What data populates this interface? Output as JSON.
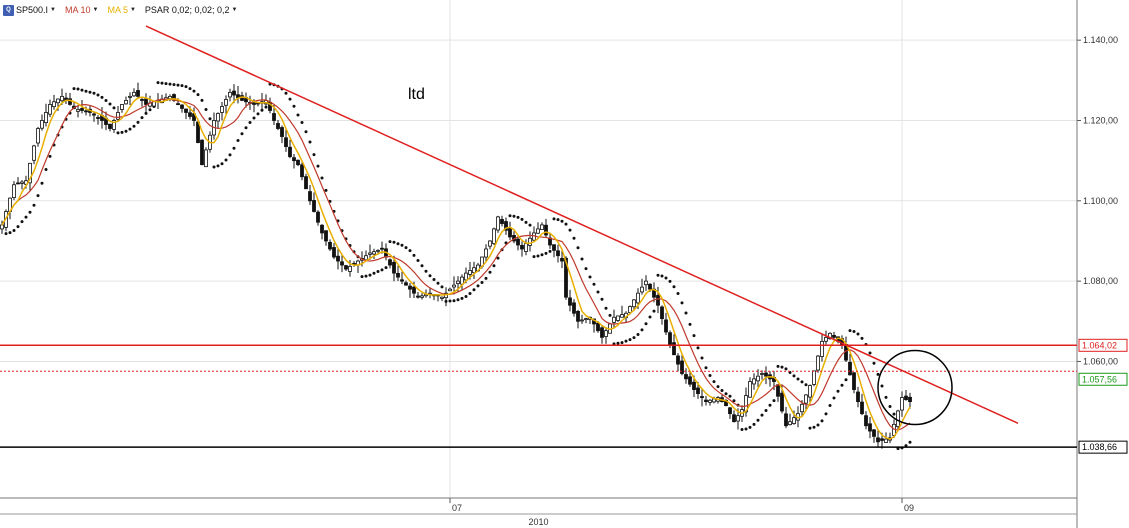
{
  "toolbar": {
    "logo_text": "Q",
    "symbol": "SP500.I",
    "ma10": "MA 10",
    "ma5": "MA 5",
    "psar": "PSAR 0,02; 0,02; 0,2",
    "colors": {
      "ma10": "#c0392b",
      "ma5": "#e8b000",
      "psar": "#111111"
    }
  },
  "annotation": "ltd",
  "chart_data": {
    "type": "candlestick",
    "instrument": "SP500.I",
    "ylim": [
      1026,
      1150
    ],
    "y_ticks": [
      "1.140,00",
      "1.120,00",
      "1.100,00",
      "1.080,00",
      "1.060,00"
    ],
    "y_tick_values": [
      1140,
      1120,
      1100,
      1080,
      1060
    ],
    "x_ticks": [
      "07",
      "09"
    ],
    "x_tick_positions_bars": [
      112,
      225
    ],
    "year_label": "2010",
    "grid": true,
    "price_levels": [
      {
        "label": "1.064,02",
        "value": 1064.02,
        "color": "#e02020",
        "style": "solid"
      },
      {
        "label": "1.057,56",
        "value": 1057.56,
        "color": "#e02020",
        "style": "dotted",
        "label_color": "#1a9a1a"
      },
      {
        "label": "1.038,66",
        "value": 1038.66,
        "color": "#000000",
        "style": "solid"
      }
    ],
    "trendline": {
      "start": [
        36,
        1143.5
      ],
      "end": [
        254,
        1044.6
      ],
      "color": "#e02020"
    },
    "circle": {
      "center": [
        227,
        1054
      ],
      "color": "#000000"
    },
    "close_path": [
      [
        0,
        1094
      ],
      [
        3,
        1104
      ],
      [
        6,
        1105
      ],
      [
        9,
        1118
      ],
      [
        12,
        1124
      ],
      [
        15,
        1126
      ],
      [
        18,
        1123
      ],
      [
        22,
        1122
      ],
      [
        25,
        1120
      ],
      [
        27,
        1118
      ],
      [
        30,
        1124
      ],
      [
        33,
        1127
      ],
      [
        36,
        1124
      ],
      [
        39,
        1125
      ],
      [
        42,
        1126
      ],
      [
        45,
        1123
      ],
      [
        48,
        1120
      ],
      [
        50,
        1109
      ],
      [
        53,
        1120
      ],
      [
        57,
        1127
      ],
      [
        60,
        1125
      ],
      [
        63,
        1124
      ],
      [
        66,
        1125
      ],
      [
        68,
        1120
      ],
      [
        70,
        1116
      ],
      [
        72,
        1111
      ],
      [
        74,
        1109
      ],
      [
        77,
        1100
      ],
      [
        80,
        1092
      ],
      [
        83,
        1086
      ],
      [
        86,
        1083
      ],
      [
        89,
        1085
      ],
      [
        92,
        1087
      ],
      [
        95,
        1088
      ],
      [
        98,
        1082
      ],
      [
        101,
        1079
      ],
      [
        104,
        1076
      ],
      [
        107,
        1077
      ],
      [
        110,
        1076
      ],
      [
        113,
        1079
      ],
      [
        116,
        1082
      ],
      [
        119,
        1084
      ],
      [
        122,
        1090
      ],
      [
        124,
        1096
      ],
      [
        127,
        1091
      ],
      [
        130,
        1088
      ],
      [
        133,
        1092
      ],
      [
        135,
        1094
      ],
      [
        137,
        1089
      ],
      [
        140,
        1085
      ],
      [
        141,
        1076
      ],
      [
        144,
        1070
      ],
      [
        147,
        1071
      ],
      [
        150,
        1066
      ],
      [
        153,
        1071
      ],
      [
        156,
        1072
      ],
      [
        159,
        1077
      ],
      [
        161,
        1080
      ],
      [
        164,
        1074
      ],
      [
        167,
        1064
      ],
      [
        170,
        1057
      ],
      [
        173,
        1053
      ],
      [
        176,
        1050
      ],
      [
        179,
        1051
      ],
      [
        181,
        1049
      ],
      [
        183,
        1045
      ],
      [
        185,
        1048
      ],
      [
        187,
        1055
      ],
      [
        190,
        1057
      ],
      [
        193,
        1055
      ],
      [
        196,
        1044
      ],
      [
        199,
        1047
      ],
      [
        202,
        1054
      ],
      [
        205,
        1065
      ],
      [
        207,
        1067
      ],
      [
        210,
        1064
      ],
      [
        213,
        1053
      ],
      [
        216,
        1044
      ],
      [
        219,
        1040
      ],
      [
        222,
        1041
      ],
      [
        225,
        1051
      ],
      [
        227,
        1050
      ]
    ],
    "ma_color_10": "#c0392b",
    "ma_color_5": "#e8b000"
  }
}
